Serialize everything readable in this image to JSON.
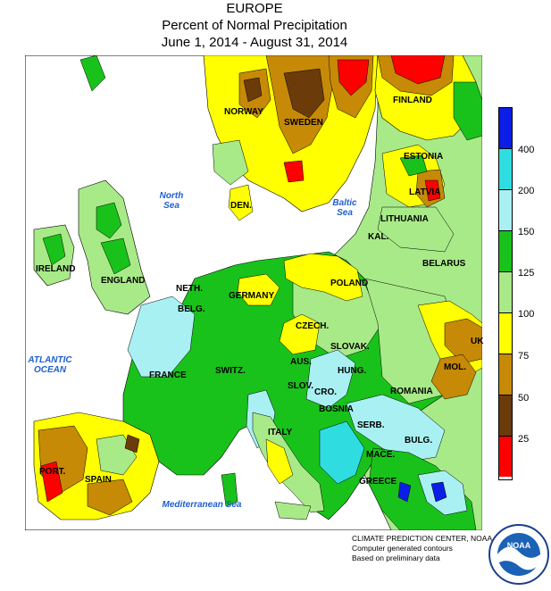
{
  "title": {
    "line1": "EUROPE",
    "line2": "Percent of Normal Precipitation",
    "line3": "June 1, 2014 - August 31, 2014"
  },
  "map_labels": {
    "norway": "NORWAY",
    "sweden": "SWEDEN",
    "finland": "FINLAND",
    "estonia": "ESTONIA",
    "latvia": "LATVIA",
    "lithuania": "LITHUANIA",
    "kal": "KAL.",
    "ireland": "IRELAND",
    "england": "ENGLAND",
    "den": "DEN.",
    "neth": "NETH.",
    "belg": "BELG.",
    "germany": "GERMANY",
    "poland": "POLAND",
    "belarus": "BELARUS",
    "czech": "CZECH.",
    "slovak": "SLOVAK.",
    "uk": "UK",
    "mol": "MOL.",
    "france": "FRANCE",
    "switz": "SWITZ.",
    "aus": "AUS.",
    "hung": "HUNG.",
    "slov": "SLOV.",
    "cro": "CRO.",
    "romania": "ROMANIA",
    "bosnia": "BOSNIA",
    "serb": "SERB.",
    "bulg": "BULG.",
    "italy": "ITALY",
    "mace": "MACE.",
    "greece": "GREECE",
    "port": "PORT.",
    "spain": "SPAIN"
  },
  "sea_labels": {
    "north_sea_1": "North",
    "north_sea_2": "Sea",
    "baltic_1": "Baltic",
    "baltic_2": "Sea",
    "atlantic_1": "ATLANTIC",
    "atlantic_2": "OCEAN",
    "med": "Mediterranean Sea"
  },
  "legend": {
    "ticks": [
      "400",
      "200",
      "150",
      "125",
      "100",
      "75",
      "50",
      "25"
    ],
    "colors_top_to_bottom": [
      "#0a1ee6",
      "#2fdde0",
      "#a9f0f2",
      "#19c21a",
      "#a8ea88",
      "#ffff00",
      "#c68a06",
      "#6b3b0a",
      "#ff0000"
    ]
  },
  "colors": {
    "ocean": "#ffffff",
    "land_outside": "#a8ea88",
    "green": "#19c21a",
    "light_green": "#a8ea88",
    "yellow": "#ffff00",
    "orange_brown": "#c68a06",
    "dark_brown": "#6b3b0a",
    "red": "#ff0000",
    "light_cyan": "#a9f0f2",
    "cyan": "#2fdde0",
    "blue": "#0a1ee6"
  },
  "credits": {
    "line1": "CLIMATE PREDICTION CENTER, NOAA",
    "line2": "Computer generated contours",
    "line3": "Based on preliminary data"
  },
  "logo": {
    "text": "NOAA",
    "icon": "noaa-logo"
  }
}
